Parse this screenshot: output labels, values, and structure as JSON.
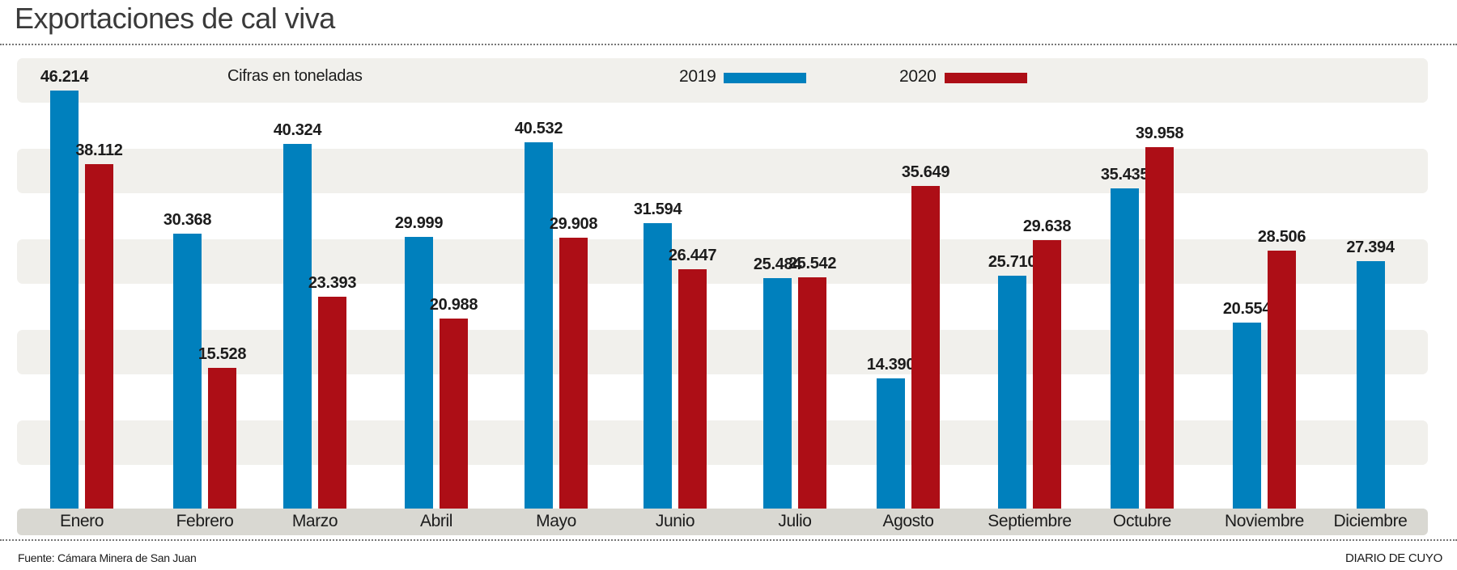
{
  "chart_data": {
    "type": "bar",
    "title": "Exportaciones de cal viva",
    "subtitle": "Cifras en toneladas",
    "xlabel": "",
    "ylabel": "",
    "ylim": [
      0,
      50000
    ],
    "grid": "alternating horizontal bands",
    "legend": "top",
    "categories": [
      "Enero",
      "Febrero",
      "Marzo",
      "Abril",
      "Mayo",
      "Junio",
      "Julio",
      "Agosto",
      "Septiembre",
      "Octubre",
      "Noviembre",
      "Diciembre"
    ],
    "series": [
      {
        "name": "2019",
        "color": "#0080bd",
        "values": [
          46214,
          30368,
          40324,
          29999,
          40532,
          31594,
          25484,
          14390,
          25710,
          35435,
          20554,
          27394
        ],
        "labels": [
          "46.214",
          "30.368",
          "40.324",
          "29.999",
          "40.532",
          "31.594",
          "25.484",
          "14.390",
          "25.710",
          "35.435",
          "20.554",
          "27.394"
        ]
      },
      {
        "name": "2020",
        "color": "#ad0e16",
        "values": [
          38112,
          15528,
          23393,
          20988,
          29908,
          26447,
          25542,
          35649,
          29638,
          39958,
          28506,
          null
        ],
        "labels": [
          "38.112",
          "15.528",
          "23.393",
          "20.988",
          "29.908",
          "26.447",
          "25.542",
          "35.649",
          "29.638",
          "39.958",
          "28.506",
          null
        ]
      }
    ]
  },
  "source": "Fuente: Cámara Minera de San Juan",
  "credit": "DIARIO DE CUYO"
}
